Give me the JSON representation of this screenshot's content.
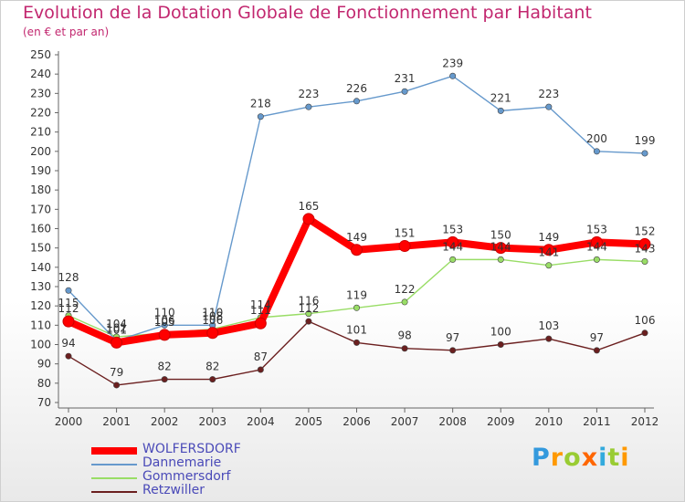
{
  "header": {
    "title": "Evolution de la Dotation Globale de Fonctionnement par Habitant",
    "subtitle": "(en € et par an)"
  },
  "chart_data": {
    "type": "line",
    "title": "Evolution de la Dotation Globale de Fonctionnement par Habitant",
    "subtitle": "(en € et par an)",
    "xlabel": "",
    "ylabel": "",
    "x": [
      2000,
      2001,
      2002,
      2003,
      2004,
      2005,
      2006,
      2007,
      2008,
      2009,
      2010,
      2011,
      2012
    ],
    "ylim": [
      70,
      250
    ],
    "yticks": [
      70,
      80,
      90,
      100,
      110,
      120,
      130,
      140,
      150,
      160,
      170,
      180,
      190,
      200,
      210,
      220,
      230,
      240,
      250
    ],
    "grid": false,
    "legend": "bottom-left",
    "series": [
      {
        "name": "WOLFERSDORF",
        "values": [
          112,
          101,
          105,
          106,
          111,
          165,
          149,
          151,
          153,
          150,
          149,
          153,
          152
        ],
        "color": "#ff0000"
      },
      {
        "name": "Dannemarie",
        "values": [
          128,
          102,
          110,
          110,
          218,
          223,
          226,
          231,
          239,
          221,
          223,
          200,
          199
        ],
        "color": "#6699cc"
      },
      {
        "name": "Gommersdorf",
        "values": [
          115,
          104,
          106,
          108,
          114,
          116,
          119,
          122,
          144,
          144,
          141,
          144,
          143
        ],
        "color": "#99dd66"
      },
      {
        "name": "Retzwiller",
        "values": [
          94,
          79,
          82,
          82,
          87,
          112,
          101,
          98,
          97,
          100,
          103,
          97,
          106
        ],
        "color": "#6b1f1f"
      }
    ],
    "data_labels": [
      [
        "112",
        "101",
        "105",
        "106",
        "111",
        "165",
        "149",
        "151",
        "153",
        "150",
        "149",
        "153",
        "152"
      ],
      [
        "128",
        "102",
        "110",
        "110",
        "218",
        "223",
        "226",
        "231",
        "239",
        "221",
        "223",
        "200",
        "199"
      ],
      [
        "115",
        "104",
        "106",
        "108",
        "114",
        "116",
        "119",
        "122",
        "144",
        "144",
        "141",
        "144",
        "143"
      ],
      [
        "94",
        "79",
        "82",
        "82",
        "87",
        "112",
        "101",
        "98",
        "97",
        "100",
        "103",
        "97",
        "106"
      ]
    ]
  },
  "logo": {
    "letters": [
      "P",
      "r",
      "o",
      "x",
      "i",
      "t",
      "i"
    ],
    "colors": [
      "#3399dd",
      "#ff9900",
      "#99cc33",
      "#ff6600",
      "#33aadd",
      "#99cc33",
      "#ff9900"
    ]
  }
}
